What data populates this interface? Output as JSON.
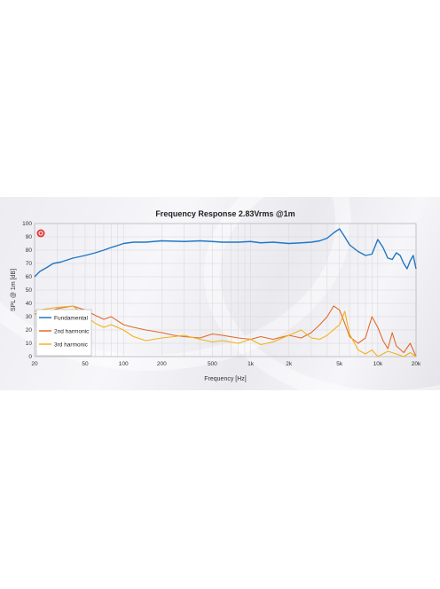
{
  "chart_data": {
    "type": "line",
    "title": "Frequency Response 2.83Vrms @1m",
    "xlabel": "Frequency [Hz]",
    "ylabel": "SPL @ 1m [dB]",
    "x_scale": "log",
    "xlim": [
      20,
      20000
    ],
    "ylim": [
      0,
      100
    ],
    "x_tick_values": [
      20,
      50,
      100,
      200,
      500,
      1000,
      2000,
      5000,
      10000,
      20000
    ],
    "x_tick_labels": [
      "20",
      "50",
      "100",
      "200",
      "500",
      "1k",
      "2k",
      "5k",
      "10k",
      "20k"
    ],
    "y_ticks": [
      0,
      10,
      20,
      30,
      40,
      50,
      60,
      70,
      80,
      90,
      100
    ],
    "grid": true,
    "legend_position": "bottom-left",
    "series": [
      {
        "name": "Fundamental",
        "color": "#1f77c4",
        "points": [
          [
            20,
            60
          ],
          [
            22,
            64
          ],
          [
            25,
            67
          ],
          [
            28,
            70
          ],
          [
            32,
            71
          ],
          [
            40,
            74
          ],
          [
            50,
            76
          ],
          [
            60,
            78
          ],
          [
            70,
            80
          ],
          [
            80,
            82
          ],
          [
            90,
            83.5
          ],
          [
            100,
            85
          ],
          [
            120,
            86
          ],
          [
            150,
            86
          ],
          [
            200,
            87
          ],
          [
            300,
            86.5
          ],
          [
            400,
            87
          ],
          [
            500,
            86.5
          ],
          [
            600,
            86
          ],
          [
            800,
            86
          ],
          [
            1000,
            86.5
          ],
          [
            1200,
            85.5
          ],
          [
            1500,
            86
          ],
          [
            2000,
            85
          ],
          [
            2500,
            85.5
          ],
          [
            3000,
            86
          ],
          [
            3500,
            87
          ],
          [
            4000,
            89
          ],
          [
            4500,
            93
          ],
          [
            5000,
            96
          ],
          [
            5500,
            90
          ],
          [
            6000,
            84
          ],
          [
            7000,
            79
          ],
          [
            8000,
            76
          ],
          [
            9000,
            77
          ],
          [
            10000,
            88
          ],
          [
            11000,
            82
          ],
          [
            12000,
            74
          ],
          [
            13000,
            73
          ],
          [
            14000,
            78
          ],
          [
            15000,
            76
          ],
          [
            16000,
            70
          ],
          [
            17000,
            66
          ],
          [
            18000,
            72
          ],
          [
            19000,
            76
          ],
          [
            20000,
            66
          ]
        ]
      },
      {
        "name": "2nd harmonic",
        "color": "#e06a2a",
        "points": [
          [
            20,
            32
          ],
          [
            25,
            33
          ],
          [
            30,
            36
          ],
          [
            40,
            38
          ],
          [
            50,
            35
          ],
          [
            60,
            31
          ],
          [
            70,
            28
          ],
          [
            80,
            30
          ],
          [
            100,
            24
          ],
          [
            120,
            22
          ],
          [
            150,
            20
          ],
          [
            200,
            18
          ],
          [
            250,
            16
          ],
          [
            300,
            15
          ],
          [
            400,
            14
          ],
          [
            500,
            17
          ],
          [
            600,
            16
          ],
          [
            800,
            14
          ],
          [
            1000,
            13
          ],
          [
            1200,
            15
          ],
          [
            1500,
            13
          ],
          [
            2000,
            16
          ],
          [
            2500,
            14
          ],
          [
            3000,
            18
          ],
          [
            3500,
            24
          ],
          [
            4000,
            30
          ],
          [
            4500,
            38
          ],
          [
            5000,
            35
          ],
          [
            5500,
            25
          ],
          [
            6000,
            15
          ],
          [
            7000,
            10
          ],
          [
            8000,
            14
          ],
          [
            9000,
            30
          ],
          [
            10000,
            22
          ],
          [
            11000,
            12
          ],
          [
            12000,
            6
          ],
          [
            13000,
            18
          ],
          [
            14000,
            8
          ],
          [
            16000,
            3
          ],
          [
            18000,
            10
          ],
          [
            20000,
            0
          ]
        ]
      },
      {
        "name": "3rd harmonic",
        "color": "#f2b21a",
        "points": [
          [
            20,
            34
          ],
          [
            25,
            36
          ],
          [
            30,
            37
          ],
          [
            40,
            38
          ],
          [
            50,
            31
          ],
          [
            60,
            25
          ],
          [
            70,
            22
          ],
          [
            80,
            24
          ],
          [
            100,
            20
          ],
          [
            120,
            15
          ],
          [
            150,
            12
          ],
          [
            200,
            14
          ],
          [
            250,
            15
          ],
          [
            300,
            16
          ],
          [
            400,
            13
          ],
          [
            500,
            11
          ],
          [
            600,
            12
          ],
          [
            800,
            10
          ],
          [
            1000,
            13
          ],
          [
            1200,
            9
          ],
          [
            1500,
            11
          ],
          [
            2000,
            16
          ],
          [
            2500,
            20
          ],
          [
            3000,
            14
          ],
          [
            3500,
            13
          ],
          [
            4000,
            16
          ],
          [
            5000,
            24
          ],
          [
            5500,
            34
          ],
          [
            6000,
            17
          ],
          [
            7000,
            5
          ],
          [
            8000,
            2
          ],
          [
            9000,
            5
          ],
          [
            10000,
            0
          ],
          [
            12000,
            4
          ],
          [
            14000,
            2
          ],
          [
            16000,
            0
          ],
          [
            18000,
            3
          ],
          [
            20000,
            0
          ]
        ]
      }
    ]
  }
}
